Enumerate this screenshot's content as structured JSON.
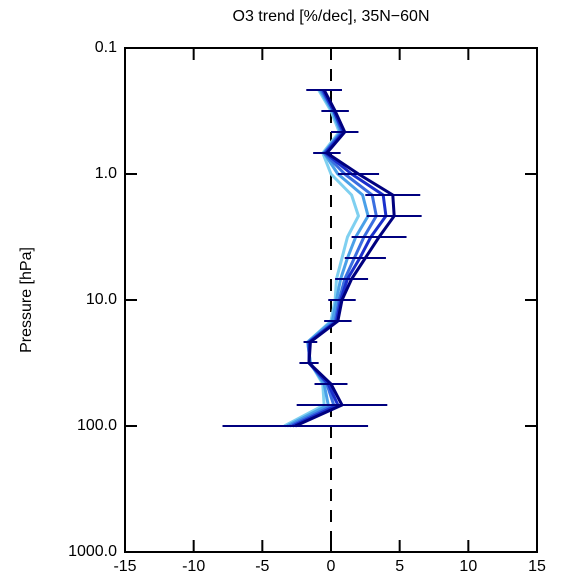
{
  "chart_data": {
    "type": "profile",
    "title": "O3 trend [%/dec], 35N−60N",
    "y_label": "Pressure [hPa]",
    "xlim": [
      -15,
      15
    ],
    "xticks": [
      -15,
      -10,
      -5,
      0,
      5,
      10,
      15
    ],
    "ylim": [
      0.1,
      1000
    ],
    "y_log": true,
    "y_inverted": true,
    "yticks": [
      0.1,
      {
        "value": 1,
        "label": "1.0"
      },
      {
        "value": 10,
        "label": "10.0"
      },
      {
        "value": 100,
        "label": "100.0"
      },
      {
        "value": 1000,
        "label": "1000.0"
      }
    ],
    "y": [
      0.2154,
      0.3162,
      0.4642,
      0.6813,
      1,
      1.468,
      2.154,
      3.162,
      4.642,
      6.813,
      10,
      14.68,
      21.54,
      31.62,
      46.42,
      68.13,
      100
    ],
    "series": [
      {
        "color": "#00007f",
        "values": [
          -0.5,
          0.3,
          1.0,
          -0.3,
          2.0,
          4.5,
          4.6,
          3.5,
          2.5,
          1.5,
          0.8,
          0.5,
          -1.5,
          -1.6,
          0.0,
          0.8,
          -2.6
        ],
        "errors": [
          1.3,
          1.0,
          1.0,
          1.0,
          1.5,
          2.0,
          2.0,
          2.0,
          1.5,
          1.2,
          1.0,
          1.0,
          0.5,
          0.7,
          1.2,
          3.3,
          5.3
        ]
      },
      {
        "color": "#1a2fcc",
        "values": [
          -0.6,
          0.2,
          0.9,
          -0.4,
          1.5,
          3.8,
          4.0,
          2.9,
          2.1,
          1.2,
          0.7,
          0.4,
          -1.6,
          -1.6,
          -0.2,
          0.5,
          -2.8
        ]
      },
      {
        "color": "#3a6ee0",
        "values": [
          -0.7,
          0.2,
          0.8,
          -0.5,
          1.0,
          3.0,
          3.3,
          2.4,
          1.7,
          1.0,
          0.6,
          0.3,
          -1.6,
          -1.6,
          -0.3,
          0.2,
          -3.0
        ]
      },
      {
        "color": "#4aa0e8",
        "values": [
          -0.8,
          0.1,
          0.7,
          -0.5,
          0.5,
          2.3,
          2.7,
          1.8,
          1.2,
          0.7,
          0.4,
          0.1,
          -1.7,
          -1.5,
          -0.5,
          -0.2,
          -3.2
        ]
      },
      {
        "color": "#7fd0f0",
        "values": [
          -0.9,
          0.0,
          0.6,
          -0.6,
          0.0,
          1.5,
          2.0,
          1.2,
          0.8,
          0.4,
          0.3,
          0.0,
          -1.7,
          -1.5,
          -0.6,
          -0.5,
          -3.4
        ]
      }
    ]
  }
}
